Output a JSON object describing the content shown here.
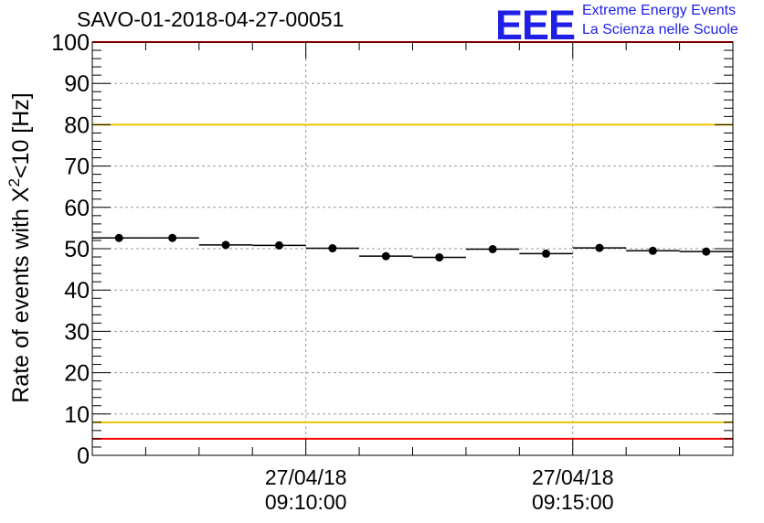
{
  "run_title": "SAVO-01-2018-04-27-00051",
  "logo": {
    "mark": "EEE",
    "line1": "Extreme Energy Events",
    "line2": "La Scienza nelle Scuole",
    "color": "#1f1fe6"
  },
  "chart_data": {
    "type": "scatter",
    "title": "SAVO-01-2018-04-27-00051",
    "ylabel_prefix": "Rate of events with X",
    "ylabel_sup": "2",
    "ylabel_suffix": "<10 [Hz]",
    "ylim": [
      0,
      100
    ],
    "yticks": [
      0,
      10,
      20,
      30,
      40,
      50,
      60,
      70,
      80,
      90,
      100
    ],
    "xlim": [
      "09:06:00",
      "09:18:00"
    ],
    "xticks": [
      {
        "date": "27/04/18",
        "time": "09:10:00"
      },
      {
        "date": "27/04/18",
        "time": "09:15:00"
      }
    ],
    "grid": true,
    "reference_lines": [
      {
        "value": 100,
        "color": "#ff0000"
      },
      {
        "value": 80,
        "color": "#f2c500"
      },
      {
        "value": 8,
        "color": "#f2c500"
      },
      {
        "value": 4,
        "color": "#ff0000"
      }
    ],
    "bin_width_seconds": 60,
    "points": [
      {
        "t": "09:06:30",
        "y": 52.6
      },
      {
        "t": "09:07:30",
        "y": 52.6
      },
      {
        "t": "09:08:30",
        "y": 50.9
      },
      {
        "t": "09:09:30",
        "y": 50.8
      },
      {
        "t": "09:10:30",
        "y": 50.1
      },
      {
        "t": "09:11:30",
        "y": 48.2
      },
      {
        "t": "09:12:30",
        "y": 47.9
      },
      {
        "t": "09:13:30",
        "y": 49.9
      },
      {
        "t": "09:14:30",
        "y": 48.8
      },
      {
        "t": "09:15:30",
        "y": 50.2
      },
      {
        "t": "09:16:30",
        "y": 49.5
      },
      {
        "t": "09:17:30",
        "y": 49.3
      }
    ]
  }
}
